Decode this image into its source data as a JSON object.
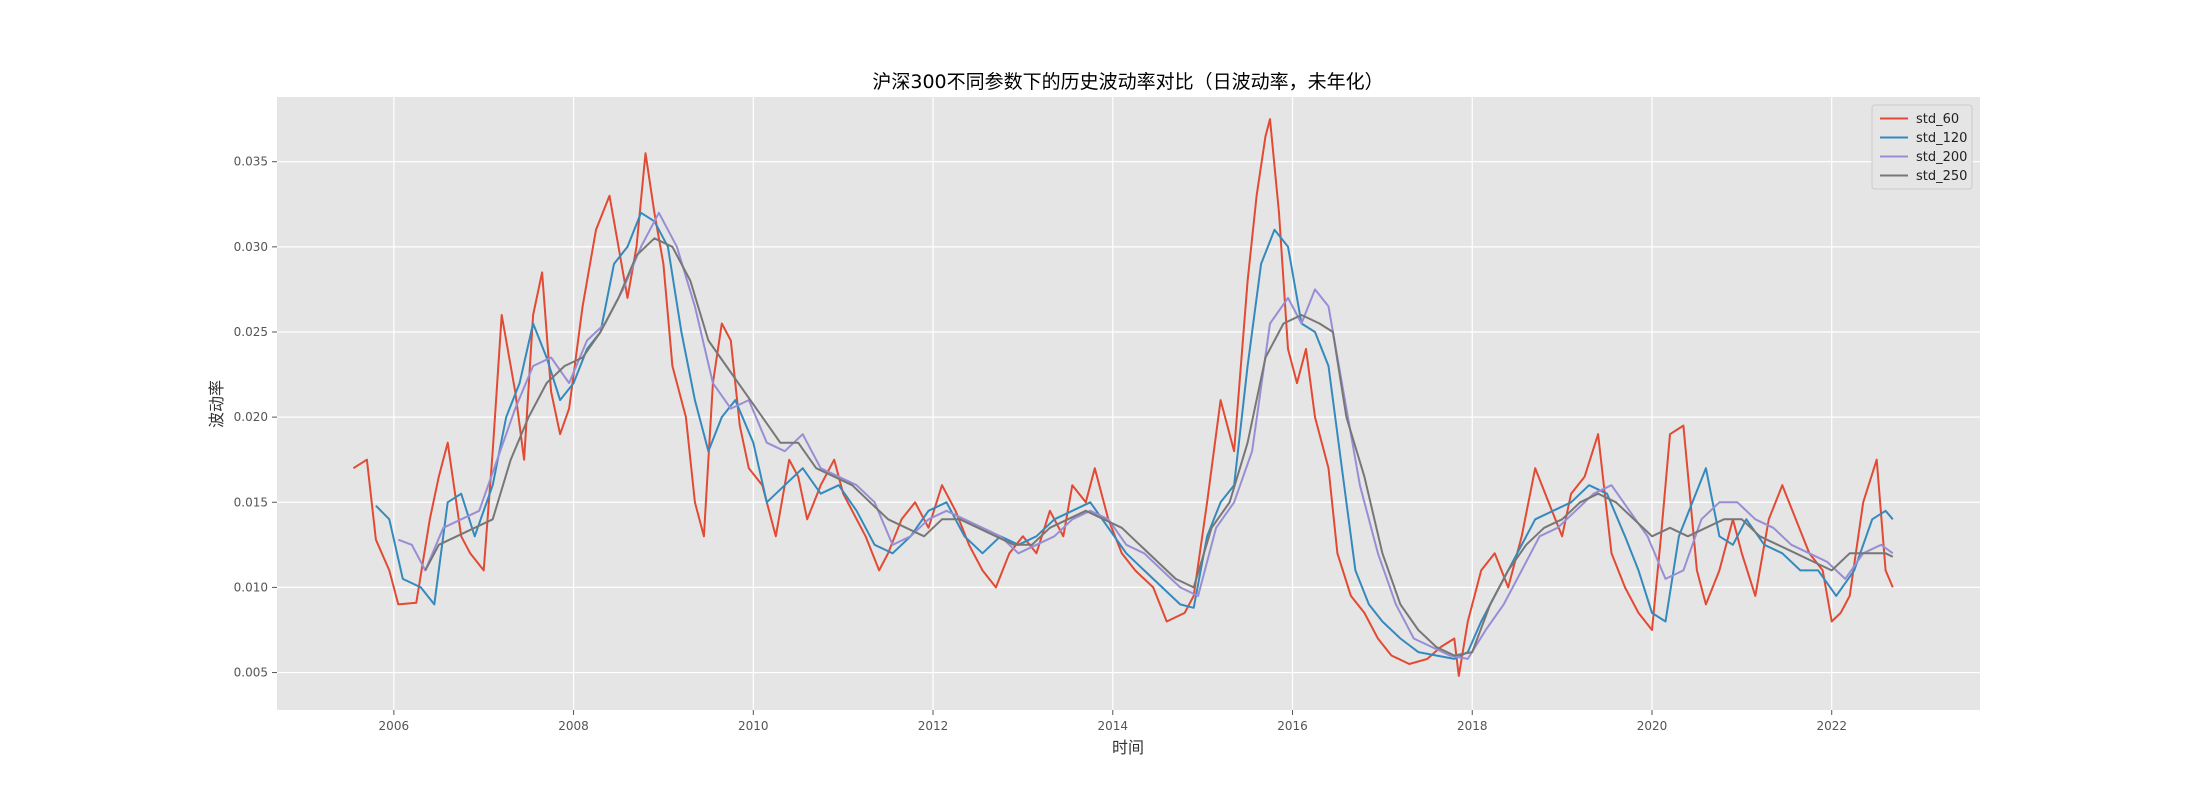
{
  "chart_data": {
    "type": "line",
    "title": "沪深300不同参数下的历史波动率对比（日波动率，未年化）",
    "xlabel": "时间",
    "ylabel": "波动率",
    "xlim": [
      2004.7,
      2023.65
    ],
    "ylim": [
      0.0028,
      0.0388
    ],
    "x_ticks": [
      2006,
      2008,
      2010,
      2012,
      2014,
      2016,
      2018,
      2020,
      2022
    ],
    "x_tick_labels": [
      "2006",
      "2008",
      "2010",
      "2012",
      "2014",
      "2016",
      "2018",
      "2020",
      "2022"
    ],
    "y_ticks": [
      0.005,
      0.01,
      0.015,
      0.02,
      0.025,
      0.03,
      0.035
    ],
    "y_tick_labels": [
      "0.005",
      "0.010",
      "0.015",
      "0.020",
      "0.025",
      "0.030",
      "0.035"
    ],
    "grid": true,
    "legend_position": "top-right",
    "series": [
      {
        "name": "std_60",
        "color": "#E24A33",
        "x": [
          2005.55,
          2005.7,
          2005.8,
          2005.95,
          2006.05,
          2006.25,
          2006.4,
          2006.5,
          2006.6,
          2006.75,
          2006.85,
          2007.0,
          2007.1,
          2007.2,
          2007.35,
          2007.45,
          2007.55,
          2007.65,
          2007.75,
          2007.85,
          2007.95,
          2008.1,
          2008.25,
          2008.4,
          2008.5,
          2008.6,
          2008.7,
          2008.8,
          2008.9,
          2009.0,
          2009.1,
          2009.25,
          2009.35,
          2009.45,
          2009.55,
          2009.65,
          2009.75,
          2009.85,
          2009.95,
          2010.1,
          2010.25,
          2010.4,
          2010.5,
          2010.6,
          2010.75,
          2010.9,
          2011.0,
          2011.1,
          2011.25,
          2011.4,
          2011.5,
          2011.65,
          2011.8,
          2011.95,
          2012.1,
          2012.25,
          2012.4,
          2012.55,
          2012.7,
          2012.85,
          2013.0,
          2013.15,
          2013.3,
          2013.45,
          2013.55,
          2013.7,
          2013.8,
          2013.95,
          2014.1,
          2014.25,
          2014.45,
          2014.6,
          2014.8,
          2014.9,
          2015.05,
          2015.2,
          2015.35,
          2015.5,
          2015.6,
          2015.7,
          2015.75,
          2015.85,
          2015.95,
          2016.05,
          2016.15,
          2016.25,
          2016.4,
          2016.5,
          2016.65,
          2016.8,
          2016.95,
          2017.1,
          2017.3,
          2017.5,
          2017.65,
          2017.8,
          2017.85,
          2017.95,
          2018.1,
          2018.25,
          2018.4,
          2018.55,
          2018.7,
          2018.85,
          2019.0,
          2019.1,
          2019.25,
          2019.4,
          2019.55,
          2019.7,
          2019.85,
          2020.0,
          2020.1,
          2020.2,
          2020.35,
          2020.5,
          2020.6,
          2020.75,
          2020.9,
          2021.0,
          2021.15,
          2021.3,
          2021.45,
          2021.6,
          2021.75,
          2021.9,
          2022.0,
          2022.1,
          2022.2,
          2022.35,
          2022.5,
          2022.6,
          2022.68
        ],
        "values": [
          0.017,
          0.0175,
          0.0128,
          0.011,
          0.009,
          0.0091,
          0.014,
          0.0165,
          0.0185,
          0.013,
          0.012,
          0.011,
          0.018,
          0.026,
          0.0215,
          0.0175,
          0.026,
          0.0285,
          0.0215,
          0.019,
          0.0205,
          0.0265,
          0.031,
          0.033,
          0.03,
          0.027,
          0.03,
          0.0355,
          0.032,
          0.029,
          0.023,
          0.02,
          0.015,
          0.013,
          0.022,
          0.0255,
          0.0245,
          0.0195,
          0.017,
          0.016,
          0.013,
          0.0175,
          0.0165,
          0.014,
          0.016,
          0.0175,
          0.0155,
          0.0145,
          0.013,
          0.011,
          0.012,
          0.014,
          0.015,
          0.0135,
          0.016,
          0.0145,
          0.0125,
          0.011,
          0.01,
          0.012,
          0.013,
          0.012,
          0.0145,
          0.013,
          0.016,
          0.015,
          0.017,
          0.014,
          0.012,
          0.011,
          0.01,
          0.008,
          0.0085,
          0.0095,
          0.015,
          0.021,
          0.018,
          0.028,
          0.033,
          0.0365,
          0.0375,
          0.032,
          0.024,
          0.022,
          0.024,
          0.02,
          0.017,
          0.012,
          0.0095,
          0.0085,
          0.007,
          0.006,
          0.0055,
          0.0058,
          0.0065,
          0.007,
          0.0048,
          0.008,
          0.011,
          0.012,
          0.01,
          0.013,
          0.017,
          0.015,
          0.013,
          0.0155,
          0.0165,
          0.019,
          0.012,
          0.01,
          0.0085,
          0.0075,
          0.013,
          0.019,
          0.0195,
          0.011,
          0.009,
          0.011,
          0.014,
          0.012,
          0.0095,
          0.014,
          0.016,
          0.014,
          0.012,
          0.011,
          0.008,
          0.0085,
          0.0095,
          0.015,
          0.0175,
          0.011,
          0.01
        ]
      },
      {
        "name": "std_120",
        "color": "#348ABD",
        "x": [
          2005.8,
          2005.95,
          2006.1,
          2006.3,
          2006.45,
          2006.6,
          2006.75,
          2006.9,
          2007.1,
          2007.25,
          2007.4,
          2007.55,
          2007.7,
          2007.85,
          2008.0,
          2008.15,
          2008.3,
          2008.45,
          2008.6,
          2008.75,
          2008.9,
          2009.05,
          2009.2,
          2009.35,
          2009.5,
          2009.65,
          2009.8,
          2010.0,
          2010.15,
          2010.35,
          2010.55,
          2010.75,
          2010.95,
          2011.15,
          2011.35,
          2011.55,
          2011.75,
          2011.95,
          2012.15,
          2012.35,
          2012.55,
          2012.75,
          2012.95,
          2013.15,
          2013.35,
          2013.55,
          2013.75,
          2013.95,
          2014.15,
          2014.35,
          2014.55,
          2014.75,
          2014.9,
          2015.05,
          2015.2,
          2015.35,
          2015.5,
          2015.65,
          2015.8,
          2015.95,
          2016.1,
          2016.25,
          2016.4,
          2016.55,
          2016.7,
          2016.85,
          2017.0,
          2017.2,
          2017.4,
          2017.6,
          2017.8,
          2017.95,
          2018.1,
          2018.3,
          2018.5,
          2018.7,
          2018.9,
          2019.1,
          2019.3,
          2019.5,
          2019.7,
          2019.85,
          2020.0,
          2020.15,
          2020.3,
          2020.45,
          2020.6,
          2020.75,
          2020.9,
          2021.05,
          2021.25,
          2021.45,
          2021.65,
          2021.85,
          2022.05,
          2022.25,
          2022.45,
          2022.6,
          2022.68
        ],
        "values": [
          0.0148,
          0.014,
          0.0105,
          0.01,
          0.009,
          0.015,
          0.0155,
          0.013,
          0.016,
          0.02,
          0.022,
          0.0255,
          0.0235,
          0.021,
          0.022,
          0.024,
          0.025,
          0.029,
          0.03,
          0.032,
          0.0315,
          0.03,
          0.025,
          0.021,
          0.018,
          0.02,
          0.021,
          0.0185,
          0.015,
          0.016,
          0.017,
          0.0155,
          0.016,
          0.0145,
          0.0125,
          0.012,
          0.013,
          0.0145,
          0.015,
          0.013,
          0.012,
          0.013,
          0.0125,
          0.013,
          0.014,
          0.0145,
          0.015,
          0.0135,
          0.012,
          0.011,
          0.01,
          0.009,
          0.0088,
          0.013,
          0.015,
          0.016,
          0.023,
          0.029,
          0.031,
          0.03,
          0.0255,
          0.025,
          0.023,
          0.017,
          0.011,
          0.009,
          0.008,
          0.007,
          0.0062,
          0.006,
          0.0058,
          0.0062,
          0.008,
          0.01,
          0.012,
          0.014,
          0.0145,
          0.015,
          0.016,
          0.0155,
          0.013,
          0.011,
          0.0085,
          0.008,
          0.013,
          0.015,
          0.017,
          0.013,
          0.0125,
          0.014,
          0.0125,
          0.012,
          0.011,
          0.011,
          0.0095,
          0.011,
          0.014,
          0.0145,
          0.014
        ]
      },
      {
        "name": "std_200",
        "color": "#988ED5",
        "x": [
          2006.05,
          2006.2,
          2006.35,
          2006.55,
          2006.75,
          2006.95,
          2007.15,
          2007.35,
          2007.55,
          2007.75,
          2007.95,
          2008.15,
          2008.35,
          2008.55,
          2008.75,
          2008.95,
          2009.15,
          2009.35,
          2009.55,
          2009.75,
          2009.95,
          2010.15,
          2010.35,
          2010.55,
          2010.75,
          2010.95,
          2011.15,
          2011.35,
          2011.55,
          2011.75,
          2011.95,
          2012.15,
          2012.35,
          2012.55,
          2012.75,
          2012.95,
          2013.15,
          2013.35,
          2013.55,
          2013.75,
          2013.95,
          2014.15,
          2014.35,
          2014.55,
          2014.75,
          2014.95,
          2015.15,
          2015.35,
          2015.55,
          2015.75,
          2015.95,
          2016.1,
          2016.25,
          2016.4,
          2016.55,
          2016.75,
          2016.95,
          2017.15,
          2017.35,
          2017.55,
          2017.75,
          2017.95,
          2018.15,
          2018.35,
          2018.55,
          2018.75,
          2018.95,
          2019.15,
          2019.35,
          2019.55,
          2019.75,
          2019.95,
          2020.15,
          2020.35,
          2020.55,
          2020.75,
          2020.95,
          2021.15,
          2021.35,
          2021.55,
          2021.75,
          2021.95,
          2022.15,
          2022.35,
          2022.55,
          2022.68
        ],
        "values": [
          0.0128,
          0.0125,
          0.011,
          0.0135,
          0.014,
          0.0145,
          0.0175,
          0.0205,
          0.023,
          0.0235,
          0.022,
          0.0245,
          0.0255,
          0.0275,
          0.03,
          0.032,
          0.03,
          0.0265,
          0.022,
          0.0205,
          0.021,
          0.0185,
          0.018,
          0.019,
          0.017,
          0.0165,
          0.016,
          0.015,
          0.0125,
          0.013,
          0.014,
          0.0145,
          0.014,
          0.0135,
          0.013,
          0.012,
          0.0125,
          0.013,
          0.014,
          0.0145,
          0.014,
          0.0125,
          0.012,
          0.011,
          0.01,
          0.0095,
          0.0135,
          0.015,
          0.018,
          0.0255,
          0.027,
          0.0255,
          0.0275,
          0.0265,
          0.022,
          0.016,
          0.012,
          0.009,
          0.007,
          0.0065,
          0.006,
          0.0058,
          0.0075,
          0.009,
          0.011,
          0.013,
          0.0135,
          0.0145,
          0.0155,
          0.016,
          0.0145,
          0.013,
          0.0105,
          0.011,
          0.014,
          0.015,
          0.015,
          0.014,
          0.0135,
          0.0125,
          0.012,
          0.0115,
          0.0105,
          0.012,
          0.0125,
          0.012
        ]
      },
      {
        "name": "std_250",
        "color": "#777777",
        "x": [
          2006.35,
          2006.5,
          2006.7,
          2006.9,
          2007.1,
          2007.3,
          2007.5,
          2007.7,
          2007.9,
          2008.1,
          2008.3,
          2008.5,
          2008.7,
          2008.9,
          2009.1,
          2009.3,
          2009.5,
          2009.7,
          2009.9,
          2010.1,
          2010.3,
          2010.5,
          2010.7,
          2010.9,
          2011.1,
          2011.3,
          2011.5,
          2011.7,
          2011.9,
          2012.1,
          2012.3,
          2012.5,
          2012.7,
          2012.9,
          2013.1,
          2013.3,
          2013.5,
          2013.7,
          2013.9,
          2014.1,
          2014.3,
          2014.5,
          2014.7,
          2014.9,
          2015.1,
          2015.3,
          2015.5,
          2015.7,
          2015.9,
          2016.1,
          2016.3,
          2016.45,
          2016.6,
          2016.8,
          2017.0,
          2017.2,
          2017.4,
          2017.6,
          2017.8,
          2018.0,
          2018.2,
          2018.4,
          2018.6,
          2018.8,
          2019.0,
          2019.2,
          2019.4,
          2019.6,
          2019.8,
          2020.0,
          2020.2,
          2020.4,
          2020.6,
          2020.8,
          2021.0,
          2021.2,
          2021.4,
          2021.6,
          2021.8,
          2022.0,
          2022.2,
          2022.4,
          2022.6,
          2022.68
        ],
        "values": [
          0.011,
          0.0125,
          0.013,
          0.0135,
          0.014,
          0.0175,
          0.02,
          0.022,
          0.023,
          0.0235,
          0.025,
          0.027,
          0.0295,
          0.0305,
          0.03,
          0.028,
          0.0245,
          0.023,
          0.0215,
          0.02,
          0.0185,
          0.0185,
          0.017,
          0.0165,
          0.016,
          0.015,
          0.014,
          0.0135,
          0.013,
          0.014,
          0.014,
          0.0135,
          0.013,
          0.0125,
          0.0125,
          0.0135,
          0.014,
          0.0145,
          0.014,
          0.0135,
          0.0125,
          0.0115,
          0.0105,
          0.01,
          0.0135,
          0.015,
          0.0185,
          0.0235,
          0.0255,
          0.026,
          0.0255,
          0.025,
          0.02,
          0.0165,
          0.012,
          0.009,
          0.0075,
          0.0065,
          0.006,
          0.0062,
          0.009,
          0.011,
          0.0125,
          0.0135,
          0.014,
          0.015,
          0.0155,
          0.015,
          0.014,
          0.013,
          0.0135,
          0.013,
          0.0135,
          0.014,
          0.014,
          0.013,
          0.0125,
          0.012,
          0.0115,
          0.011,
          0.012,
          0.012,
          0.012,
          0.0118
        ]
      }
    ]
  }
}
